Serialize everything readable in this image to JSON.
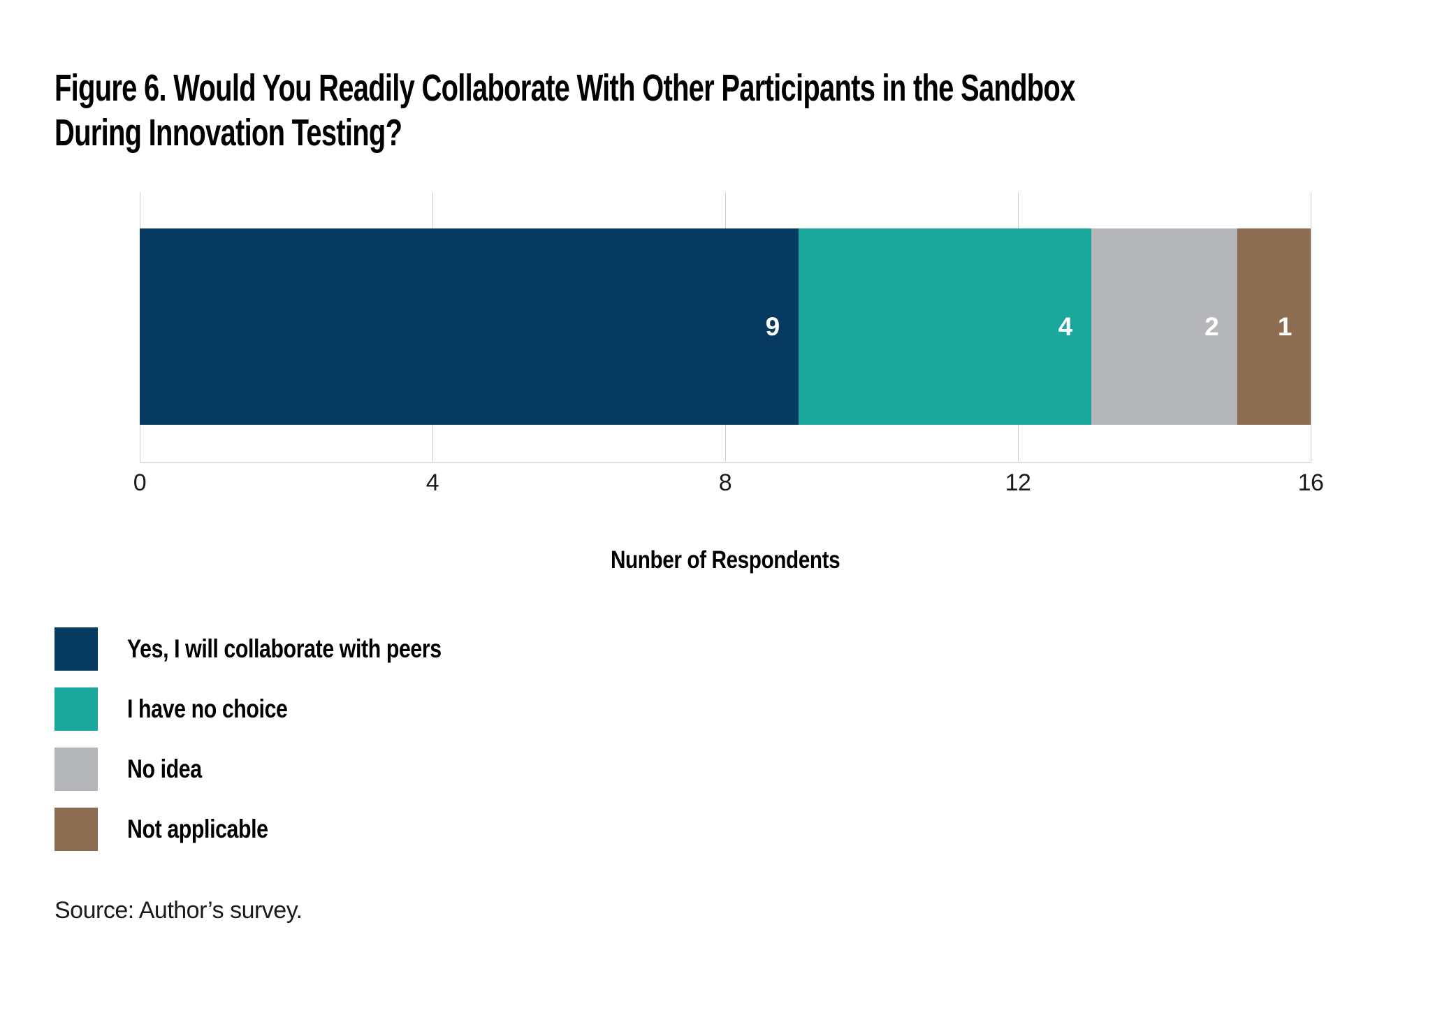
{
  "figure": {
    "title_lines": [
      "Figure 6. Would You Readily Collaborate With Other Participants in the Sandbox",
      "During Innovation Testing?"
    ],
    "source": "Source: Author’s survey."
  },
  "chart_data": {
    "type": "bar",
    "orientation": "horizontal",
    "stacked": true,
    "title": "Figure 6. Would You Readily Collaborate With Other Participants in the Sandbox During Innovation Testing?",
    "xlabel": "Nunber of Respondents",
    "xlim": [
      0,
      16
    ],
    "xticks": [
      0,
      4,
      8,
      12,
      16
    ],
    "total": 16,
    "grid": true,
    "legend_position": "bottom-left",
    "value_label_color": "#ffffff",
    "gridline_color": "#cccccc",
    "series": [
      {
        "name": "Yes, I will collaborate with peers",
        "value": 9,
        "color": "#063a60"
      },
      {
        "name": "I have no choice",
        "value": 4,
        "color": "#1aa89c"
      },
      {
        "name": "No idea",
        "value": 2,
        "color": "#b5b6b9"
      },
      {
        "name": "Not applicable",
        "value": 1,
        "color": "#8c6d52"
      }
    ]
  }
}
